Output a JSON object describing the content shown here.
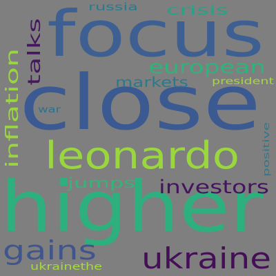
{
  "background": "#7f7f7f",
  "words": [
    {
      "id": "focus",
      "text": "focus",
      "color": "#3e5f92"
    },
    {
      "id": "close",
      "text": "close",
      "color": "#3c5a92"
    },
    {
      "id": "higher",
      "text": "higher",
      "color": "#2db07d"
    },
    {
      "id": "leonardo",
      "text": "leonardo",
      "color": "#9ad73e"
    },
    {
      "id": "ukraine",
      "text": "ukraine",
      "color": "#440f56"
    },
    {
      "id": "gains",
      "text": "gains",
      "color": "#3f558c"
    },
    {
      "id": "investors",
      "text": "investors",
      "color": "#45145f"
    },
    {
      "id": "european",
      "text": "european",
      "color": "#2fb27c"
    },
    {
      "id": "inflation",
      "text": "inflation",
      "color": "#9ad73e"
    },
    {
      "id": "talks",
      "text": "talks",
      "color": "#46175f"
    },
    {
      "id": "markets",
      "text": "markets",
      "color": "#2a7a8d"
    },
    {
      "id": "jumps",
      "text": "jumps",
      "color": "#33b57a"
    },
    {
      "id": "russia",
      "text": "russia",
      "color": "#2a7a8d"
    },
    {
      "id": "crisis",
      "text": "crisis",
      "color": "#26a285"
    },
    {
      "id": "president",
      "text": "president",
      "color": "#a3d840"
    },
    {
      "id": "war",
      "text": "war",
      "color": "#2f6f8e"
    },
    {
      "id": "positive",
      "text": "positive",
      "color": "#2a7a8d"
    },
    {
      "id": "ukrainethe",
      "text": "ukrainethe",
      "color": "#a5da40"
    }
  ]
}
